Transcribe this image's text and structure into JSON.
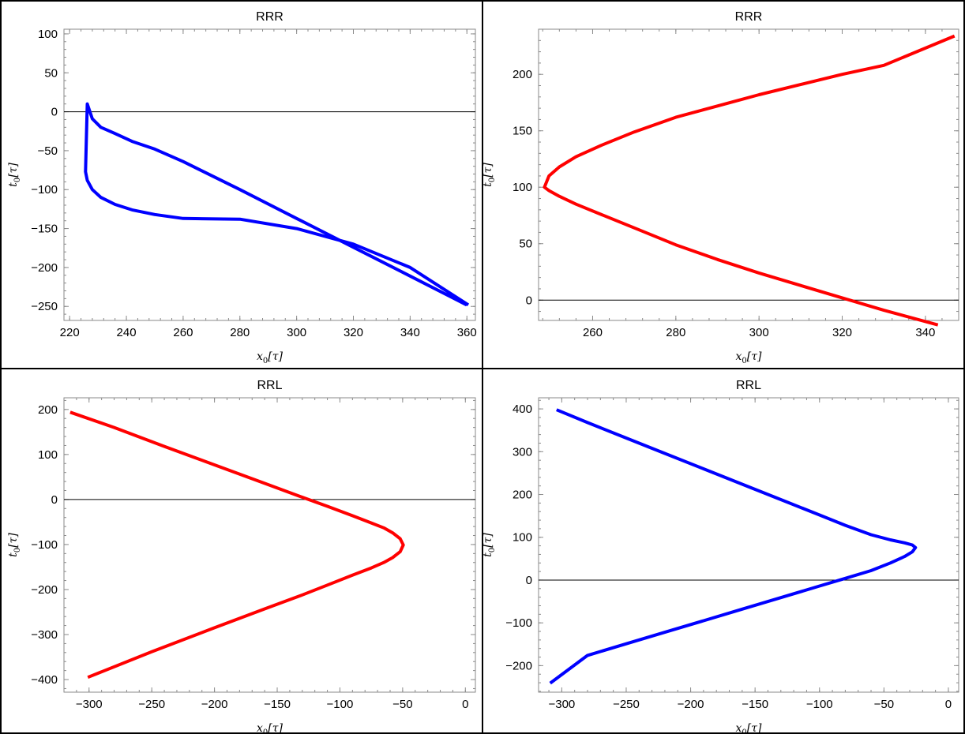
{
  "chart_data": [
    {
      "type": "line",
      "title": "RRR",
      "xlabel": "x0[τ]",
      "ylabel": "t0[τ]",
      "xlim": [
        218,
        363
      ],
      "ylim": [
        -268,
        106
      ],
      "xticks": [
        220,
        240,
        260,
        280,
        300,
        320,
        340,
        360
      ],
      "yticks": [
        -250,
        -200,
        -150,
        -100,
        -50,
        0,
        50,
        100
      ],
      "zero_line": true,
      "series": [
        {
          "color": "#0000ff",
          "x": [
            359.9,
            340,
            320,
            300,
            280,
            260,
            250,
            242,
            236,
            231,
            228,
            226.2,
            225.6,
            226.2,
            228,
            231,
            236,
            242,
            250,
            260,
            280,
            300,
            320,
            340,
            360.5
          ],
          "y": [
            -248,
            -211,
            -174,
            -137,
            -100,
            -64,
            -48,
            -38,
            -28,
            -20,
            -9,
            10,
            -77,
            -88,
            -100,
            -110,
            -119,
            -126,
            -132,
            -137,
            -138,
            -150,
            -170,
            -200,
            -248
          ]
        }
      ]
    },
    {
      "type": "line",
      "title": "RRR",
      "xlabel": "x0[τ]",
      "ylabel": "t0[τ]",
      "xlim": [
        247,
        348
      ],
      "ylim": [
        -18,
        240
      ],
      "xticks": [
        260,
        280,
        300,
        320,
        340
      ],
      "yticks": [
        0,
        50,
        100,
        150,
        200
      ],
      "zero_line": true,
      "series": [
        {
          "color": "#ff0000",
          "x": [
            343,
            330,
            320,
            310,
            300,
            290,
            280,
            270,
            262,
            256,
            252,
            249.5,
            248.4,
            249.5,
            252,
            256,
            262,
            270,
            280,
            290,
            300,
            310,
            320,
            330,
            347
          ],
          "y": [
            -22,
            -9,
            2,
            13,
            24,
            36,
            49,
            64,
            76,
            85,
            92,
            97,
            100,
            110,
            118,
            127,
            137,
            149,
            162,
            172,
            182,
            191,
            200,
            208,
            234
          ]
        }
      ]
    },
    {
      "type": "line",
      "title": "RRL",
      "xlabel": "x0[τ]",
      "ylabel": "t0[τ]",
      "xlim": [
        -320,
        8
      ],
      "ylim": [
        -428,
        226
      ],
      "xticks": [
        -300,
        -250,
        -200,
        -150,
        -100,
        -50,
        0
      ],
      "yticks": [
        -400,
        -300,
        -200,
        -100,
        0,
        100,
        200
      ],
      "zero_line": true,
      "series": [
        {
          "color": "#ff0000",
          "x": [
            -315,
            -280,
            -240,
            -200,
            -160,
            -130,
            -110,
            -90,
            -75,
            -65,
            -58,
            -52,
            -49.5,
            -52,
            -58,
            -65,
            -75,
            -90,
            -110,
            -130,
            -160,
            -200,
            -250,
            -301
          ],
          "y": [
            194,
            160,
            118,
            77,
            36,
            5,
            -15,
            -36,
            -52,
            -63,
            -74,
            -87,
            -101,
            -116,
            -129,
            -140,
            -152,
            -168,
            -190,
            -212,
            -243,
            -285,
            -338,
            -395
          ]
        }
      ]
    },
    {
      "type": "line",
      "title": "RRL",
      "xlabel": "x0[τ]",
      "ylabel": "t0[τ]",
      "xlim": [
        -318,
        8
      ],
      "ylim": [
        -262,
        426
      ],
      "xticks": [
        -300,
        -250,
        -200,
        -150,
        -100,
        -50,
        0
      ],
      "yticks": [
        -200,
        -100,
        0,
        100,
        200,
        300,
        400
      ],
      "zero_line": true,
      "series": [
        {
          "color": "#0000ff",
          "x": [
            -304,
            -280,
            -250,
            -220,
            -190,
            -160,
            -130,
            -100,
            -80,
            -60,
            -45,
            -34,
            -28,
            -25.5,
            -28,
            -34,
            -45,
            -60,
            -80,
            -100,
            -130,
            -160,
            -190,
            -220,
            -250,
            -280,
            -309
          ],
          "y": [
            398,
            368,
            332,
            296,
            260,
            224,
            188,
            152,
            128,
            106,
            94,
            87,
            82,
            76,
            66,
            55,
            40,
            22,
            4,
            -14,
            -41,
            -68,
            -95,
            -122,
            -149,
            -176,
            -241
          ]
        }
      ]
    }
  ]
}
